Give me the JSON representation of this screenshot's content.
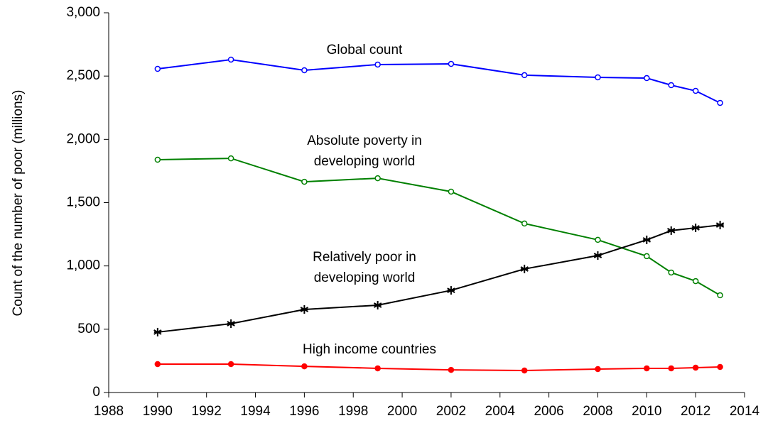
{
  "chart_data": {
    "type": "line",
    "y_label": "Count of the number of poor (millions)",
    "x": [
      1990,
      1993,
      1996,
      1999,
      2002,
      2005,
      2008,
      2010,
      2011,
      2012,
      2013
    ],
    "series": [
      {
        "name": "Global count",
        "color": "#0000ff",
        "marker": "open-circle",
        "values": [
          2557,
          2630,
          2546,
          2591,
          2596,
          2507,
          2490,
          2484,
          2428,
          2383,
          2288
        ]
      },
      {
        "name": "Absolute poverty in developing world",
        "color": "#008000",
        "marker": "open-circle",
        "values": [
          1839,
          1850,
          1665,
          1693,
          1587,
          1335,
          1206,
          1077,
          948,
          880,
          768
        ]
      },
      {
        "name": "Relatively poor in developing world",
        "color": "#000000",
        "marker": "asterisk",
        "values": [
          477,
          544,
          656,
          690,
          807,
          976,
          1082,
          1206,
          1279,
          1301,
          1323
        ]
      },
      {
        "name": "High income countries",
        "color": "#ff0000",
        "marker": "filled-circle",
        "values": [
          224,
          224,
          207,
          191,
          179,
          174,
          185,
          191,
          191,
          196,
          202
        ]
      }
    ],
    "xlim": [
      1988,
      2014
    ],
    "xticks": [
      1988,
      1990,
      1992,
      1994,
      1996,
      1998,
      2000,
      2002,
      2004,
      2006,
      2008,
      2010,
      2012,
      2014
    ],
    "ylim": [
      0,
      3000
    ],
    "yticks": [
      0,
      {
        "value": 500,
        "label": "500"
      },
      {
        "value": 1000,
        "label": "1,000"
      },
      {
        "value": 1500,
        "label": "1,500"
      },
      {
        "value": 2000,
        "label": "2,000"
      },
      {
        "value": 2500,
        "label": "2,500"
      },
      {
        "value": 3000,
        "label": "3,000"
      }
    ],
    "grid": false
  }
}
